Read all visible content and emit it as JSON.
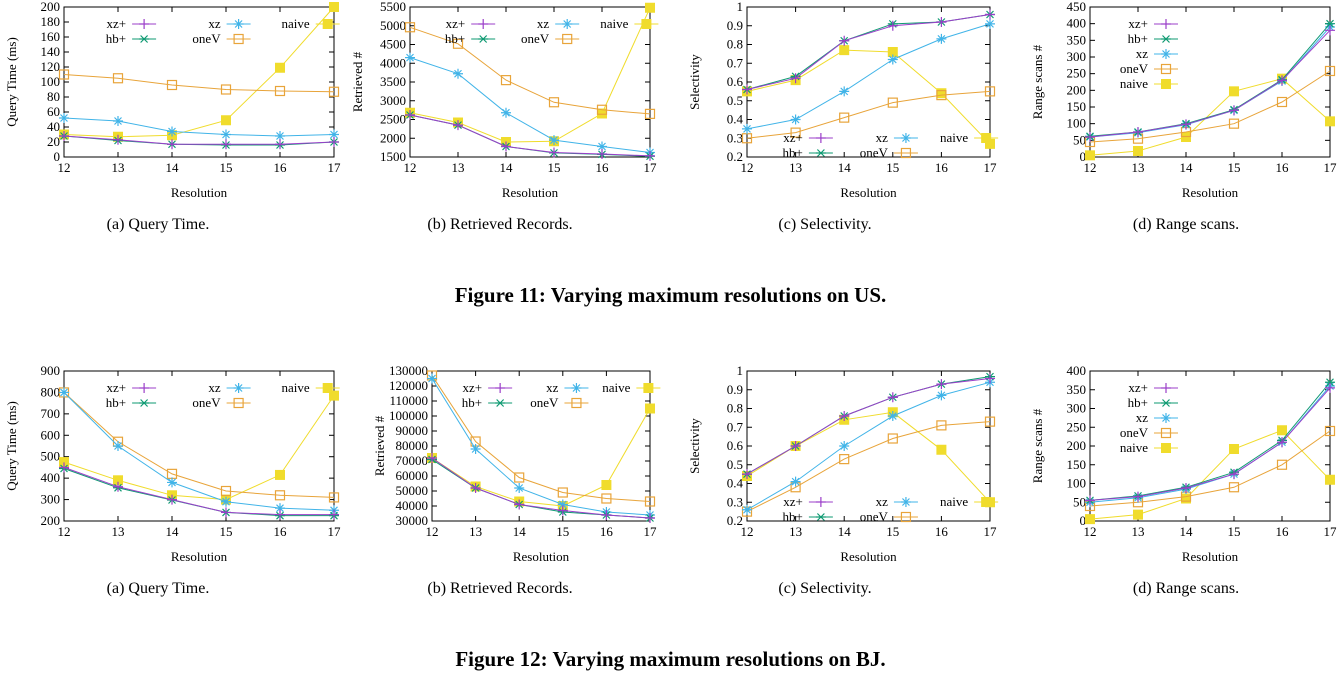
{
  "colors": {
    "xz+": "#9b3fc9",
    "hb+": "#0e9a72",
    "xz": "#41b4e8",
    "oneV": "#e8a43a",
    "naive": "#f0dc2c"
  },
  "figures": [
    {
      "title": "Figure 11: Varying maximum resolutions on US.",
      "captions": [
        "(a)  Query Time.",
        "(b)  Retrieved Records.",
        "(c)  Selectivity.",
        "(d)  Range scans."
      ]
    },
    {
      "title": "Figure 12: Varying maximum resolutions on BJ.",
      "captions": [
        "(a)  Query Time.",
        "(b)  Retrieved Records.",
        "(c)  Selectivity.",
        "(d)  Range scans."
      ]
    }
  ],
  "chart_data": [
    {
      "type": "line",
      "xlabel": "Resolution",
      "ylabel": "Query Time (ms)",
      "x": [
        12,
        13,
        14,
        15,
        16,
        17
      ],
      "xlim": [
        12,
        17
      ],
      "ylim": [
        0,
        200
      ],
      "yticks": [
        0,
        20,
        40,
        60,
        80,
        100,
        120,
        140,
        160,
        180,
        200
      ],
      "legend": "top-grid-2row",
      "series": [
        {
          "name": "xz+",
          "values": [
            28,
            23,
            17,
            17,
            17,
            20
          ]
        },
        {
          "name": "hb+",
          "values": [
            28,
            22,
            17,
            16,
            16,
            20
          ]
        },
        {
          "name": "xz",
          "values": [
            52,
            48,
            34,
            30,
            28,
            30
          ]
        },
        {
          "name": "oneV",
          "values": [
            110,
            105,
            96,
            90,
            88,
            87
          ]
        },
        {
          "name": "naive",
          "values": [
            30,
            27,
            29,
            49,
            119,
            200
          ]
        }
      ]
    },
    {
      "type": "line",
      "xlabel": "Resolution",
      "ylabel": "Retrieved #",
      "x": [
        12,
        13,
        14,
        15,
        16,
        17
      ],
      "xlim": [
        12,
        17
      ],
      "ylim": [
        1500,
        5500
      ],
      "yticks": [
        1500,
        2000,
        2500,
        3000,
        3500,
        4000,
        4500,
        5000,
        5500
      ],
      "legend": "top-grid-2row",
      "series": [
        {
          "name": "xz+",
          "values": [
            2620,
            2350,
            1780,
            1620,
            1580,
            1530
          ]
        },
        {
          "name": "hb+",
          "values": [
            2620,
            2350,
            1780,
            1610,
            1570,
            1520
          ]
        },
        {
          "name": "xz",
          "values": [
            4150,
            3720,
            2680,
            1950,
            1780,
            1620
          ]
        },
        {
          "name": "oneV",
          "values": [
            4960,
            4520,
            3550,
            2960,
            2760,
            2650
          ]
        },
        {
          "name": "naive",
          "values": [
            2680,
            2420,
            1900,
            1920,
            2660,
            5480
          ]
        }
      ]
    },
    {
      "type": "line",
      "xlabel": "Resolution",
      "ylabel": "Selectivity",
      "x": [
        12,
        13,
        14,
        15,
        16,
        17
      ],
      "xlim": [
        12,
        17
      ],
      "ylim": [
        0.2,
        1
      ],
      "yticks": [
        0.2,
        0.3,
        0.4,
        0.5,
        0.6,
        0.7,
        0.8,
        0.9,
        1
      ],
      "legend": "bottom-grid-2row",
      "series": [
        {
          "name": "xz+",
          "values": [
            0.56,
            0.62,
            0.82,
            0.9,
            0.92,
            0.96
          ]
        },
        {
          "name": "hb+",
          "values": [
            0.56,
            0.63,
            0.82,
            0.91,
            0.92,
            0.96
          ]
        },
        {
          "name": "xz",
          "values": [
            0.35,
            0.4,
            0.55,
            0.72,
            0.83,
            0.91
          ]
        },
        {
          "name": "oneV",
          "values": [
            0.3,
            0.33,
            0.41,
            0.49,
            0.53,
            0.55
          ]
        },
        {
          "name": "naive",
          "values": [
            0.55,
            0.61,
            0.77,
            0.76,
            0.54,
            0.27
          ]
        }
      ]
    },
    {
      "type": "line",
      "xlabel": "Resolution",
      "ylabel": "Range scans #",
      "x": [
        12,
        13,
        14,
        15,
        16,
        17
      ],
      "xlim": [
        12,
        17
      ],
      "ylim": [
        0,
        450
      ],
      "yticks": [
        0,
        50,
        100,
        150,
        200,
        250,
        300,
        350,
        400,
        450
      ],
      "legend": "top-left-column",
      "series": [
        {
          "name": "xz+",
          "values": [
            60,
            75,
            98,
            140,
            230,
            380
          ]
        },
        {
          "name": "hb+",
          "values": [
            62,
            75,
            100,
            142,
            232,
            400
          ]
        },
        {
          "name": "xz",
          "values": [
            60,
            73,
            97,
            140,
            228,
            390
          ]
        },
        {
          "name": "oneV",
          "values": [
            45,
            55,
            75,
            100,
            165,
            258
          ]
        },
        {
          "name": "naive",
          "values": [
            5,
            18,
            60,
            197,
            235,
            107
          ]
        }
      ]
    },
    {
      "type": "line",
      "xlabel": "Resolution",
      "ylabel": "Query Time (ms)",
      "x": [
        12,
        13,
        14,
        15,
        16,
        17
      ],
      "xlim": [
        12,
        17
      ],
      "ylim": [
        200,
        900
      ],
      "yticks": [
        200,
        300,
        400,
        500,
        600,
        700,
        800,
        900
      ],
      "legend": "top-grid-2row",
      "series": [
        {
          "name": "xz+",
          "values": [
            450,
            360,
            300,
            240,
            230,
            230
          ]
        },
        {
          "name": "hb+",
          "values": [
            445,
            355,
            298,
            240,
            225,
            225
          ]
        },
        {
          "name": "xz",
          "values": [
            800,
            550,
            380,
            290,
            260,
            250
          ]
        },
        {
          "name": "oneV",
          "values": [
            800,
            570,
            420,
            340,
            320,
            310
          ]
        },
        {
          "name": "naive",
          "values": [
            475,
            390,
            320,
            300,
            415,
            785
          ]
        }
      ]
    },
    {
      "type": "line",
      "xlabel": "Resolution",
      "ylabel": "Retrieved #",
      "x": [
        12,
        13,
        14,
        15,
        16,
        17
      ],
      "xlim": [
        12,
        17
      ],
      "ylim": [
        30000,
        130000
      ],
      "yticks": [
        30000,
        40000,
        50000,
        60000,
        70000,
        80000,
        90000,
        100000,
        110000,
        120000,
        130000
      ],
      "legend": "top-grid-2row",
      "series": [
        {
          "name": "xz+",
          "values": [
            72000,
            52000,
            41000,
            37000,
            34000,
            32000
          ]
        },
        {
          "name": "hb+",
          "values": [
            71000,
            52000,
            41000,
            36000,
            34000,
            32000
          ]
        },
        {
          "name": "xz",
          "values": [
            125000,
            78000,
            52000,
            41000,
            36000,
            34000
          ]
        },
        {
          "name": "oneV",
          "values": [
            127000,
            83000,
            59000,
            49000,
            45000,
            43000
          ]
        },
        {
          "name": "naive",
          "values": [
            72000,
            53000,
            43000,
            40000,
            54000,
            105000
          ]
        }
      ]
    },
    {
      "type": "line",
      "xlabel": "Resolution",
      "ylabel": "Selectivity",
      "x": [
        12,
        13,
        14,
        15,
        16,
        17
      ],
      "xlim": [
        12,
        17
      ],
      "ylim": [
        0.2,
        1
      ],
      "yticks": [
        0.2,
        0.3,
        0.4,
        0.5,
        0.6,
        0.7,
        0.8,
        0.9,
        1
      ],
      "legend": "bottom-grid-2row",
      "series": [
        {
          "name": "xz+",
          "values": [
            0.45,
            0.6,
            0.76,
            0.86,
            0.93,
            0.96
          ]
        },
        {
          "name": "hb+",
          "values": [
            0.45,
            0.6,
            0.76,
            0.86,
            0.93,
            0.97
          ]
        },
        {
          "name": "xz",
          "values": [
            0.26,
            0.41,
            0.6,
            0.76,
            0.87,
            0.94
          ]
        },
        {
          "name": "oneV",
          "values": [
            0.25,
            0.38,
            0.53,
            0.64,
            0.71,
            0.73
          ]
        },
        {
          "name": "naive",
          "values": [
            0.44,
            0.6,
            0.74,
            0.78,
            0.58,
            0.3
          ]
        }
      ]
    },
    {
      "type": "line",
      "xlabel": "Resolution",
      "ylabel": "Range scans #",
      "x": [
        12,
        13,
        14,
        15,
        16,
        17
      ],
      "xlim": [
        12,
        17
      ],
      "ylim": [
        0,
        400
      ],
      "yticks": [
        0,
        50,
        100,
        150,
        200,
        250,
        300,
        350,
        400
      ],
      "legend": "top-left-column",
      "series": [
        {
          "name": "xz+",
          "values": [
            55,
            65,
            88,
            125,
            210,
            355
          ]
        },
        {
          "name": "hb+",
          "values": [
            55,
            67,
            90,
            130,
            215,
            370
          ]
        },
        {
          "name": "xz",
          "values": [
            50,
            62,
            85,
            125,
            210,
            360
          ]
        },
        {
          "name": "oneV",
          "values": [
            40,
            50,
            65,
            90,
            150,
            240
          ]
        },
        {
          "name": "naive",
          "values": [
            5,
            17,
            60,
            192,
            242,
            110
          ]
        }
      ]
    }
  ]
}
